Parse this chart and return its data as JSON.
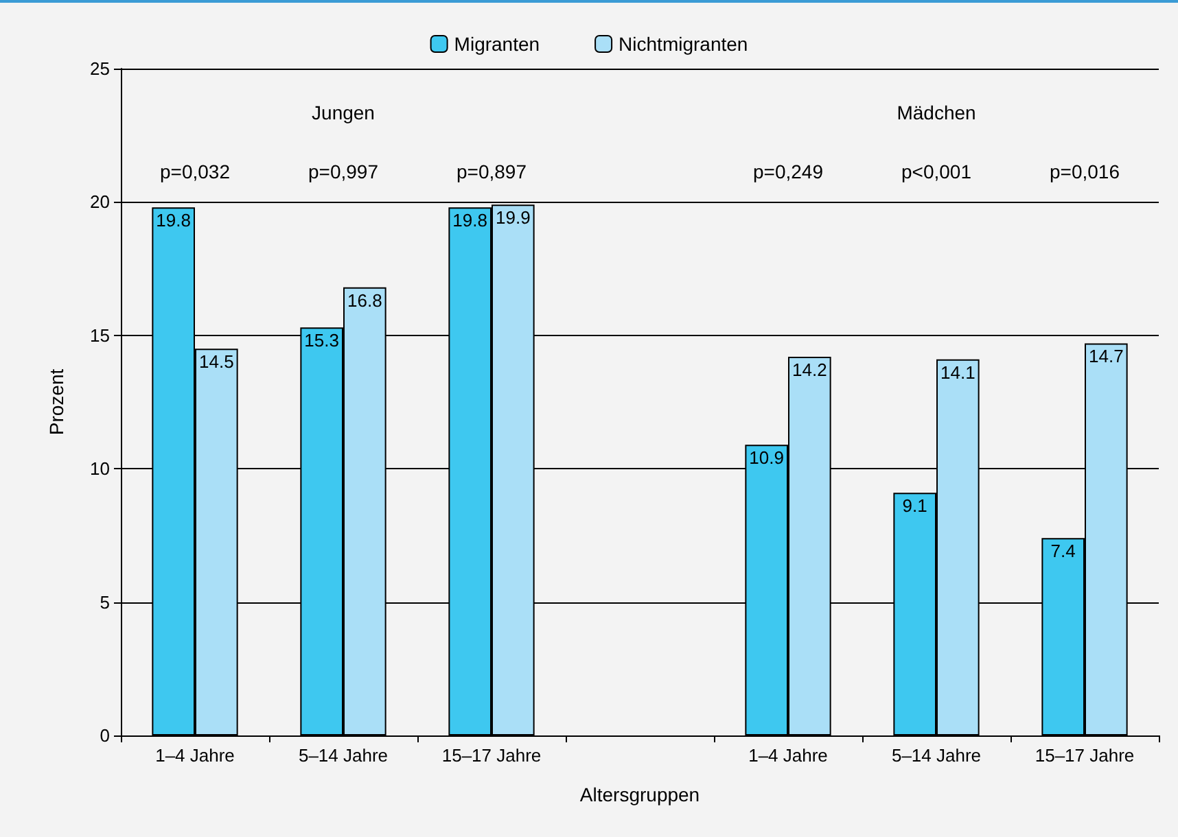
{
  "chart_data": {
    "type": "bar",
    "xlabel": "Altersgruppen",
    "ylabel": "Prozent",
    "categories": [
      "1–4 Jahre",
      "5–14 Jahre",
      "15–17 Jahre",
      null,
      "1–4 Jahre",
      "5–14 Jahre",
      "15–17 Jahre"
    ],
    "series": [
      {
        "name": "Migranten",
        "color": "#3ec8f0",
        "values": [
          19.8,
          15.3,
          19.8,
          null,
          10.9,
          9.1,
          7.4
        ]
      },
      {
        "name": "Nichtmigranten",
        "color": "#aadff7",
        "values": [
          14.5,
          16.8,
          19.9,
          null,
          14.2,
          14.1,
          14.7
        ]
      }
    ],
    "annotations": [
      "Jungen",
      "Mädchen",
      "p=0,032",
      "p=0,997",
      "p=0,897",
      "p=0,249",
      "p<0,001",
      "p=0,016"
    ],
    "ylim": [
      0,
      25
    ],
    "yticks": [
      0,
      5,
      10,
      15,
      20,
      25
    ],
    "grid": "y",
    "legend": "top",
    "data_labels": true
  }
}
